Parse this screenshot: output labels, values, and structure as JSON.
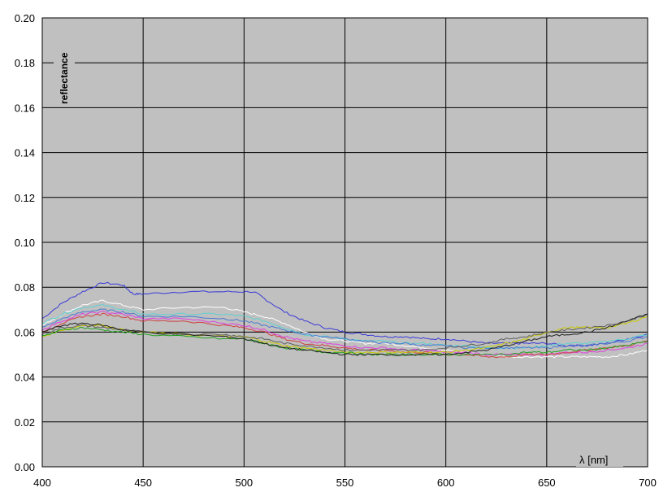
{
  "chart_data": {
    "type": "line",
    "title": "",
    "xlabel": "λ [nm]",
    "ylabel": "reflectance",
    "xlim": [
      400,
      700
    ],
    "ylim": [
      0,
      0.2
    ],
    "x_ticks": [
      "400",
      "450",
      "500",
      "550",
      "600",
      "650",
      "700"
    ],
    "y_ticks": [
      "0.00",
      "0.02",
      "0.04",
      "0.06",
      "0.08",
      "0.10",
      "0.12",
      "0.14",
      "0.16",
      "0.18",
      "0.20"
    ],
    "grid": true,
    "legend": "none",
    "plot_background": "#c0c0c0",
    "series": [
      {
        "color": "#3a3ad8",
        "points": [
          [
            400,
            0.066
          ],
          [
            410,
            0.073
          ],
          [
            420,
            0.078
          ],
          [
            430,
            0.082
          ],
          [
            440,
            0.081
          ],
          [
            445,
            0.077
          ],
          [
            450,
            0.077
          ],
          [
            470,
            0.078
          ],
          [
            490,
            0.078
          ],
          [
            505,
            0.078
          ],
          [
            510,
            0.075
          ],
          [
            520,
            0.069
          ],
          [
            530,
            0.065
          ],
          [
            540,
            0.062
          ],
          [
            550,
            0.06
          ],
          [
            560,
            0.059
          ],
          [
            570,
            0.058
          ],
          [
            580,
            0.058
          ],
          [
            590,
            0.057
          ],
          [
            600,
            0.057
          ],
          [
            610,
            0.056
          ],
          [
            620,
            0.055
          ],
          [
            630,
            0.055
          ],
          [
            640,
            0.055
          ],
          [
            650,
            0.055
          ],
          [
            660,
            0.054
          ],
          [
            670,
            0.054
          ],
          [
            680,
            0.055
          ],
          [
            690,
            0.057
          ],
          [
            700,
            0.059
          ]
        ]
      },
      {
        "color": "#ffffff",
        "points": [
          [
            400,
            0.063
          ],
          [
            410,
            0.068
          ],
          [
            420,
            0.072
          ],
          [
            430,
            0.074
          ],
          [
            440,
            0.072
          ],
          [
            450,
            0.07
          ],
          [
            470,
            0.071
          ],
          [
            490,
            0.071
          ],
          [
            500,
            0.069
          ],
          [
            510,
            0.067
          ],
          [
            520,
            0.064
          ],
          [
            530,
            0.06
          ],
          [
            540,
            0.057
          ],
          [
            550,
            0.056
          ],
          [
            560,
            0.055
          ],
          [
            570,
            0.055
          ],
          [
            580,
            0.054
          ],
          [
            590,
            0.053
          ],
          [
            600,
            0.052
          ],
          [
            610,
            0.051
          ],
          [
            620,
            0.05
          ],
          [
            630,
            0.049
          ],
          [
            640,
            0.049
          ],
          [
            650,
            0.049
          ],
          [
            660,
            0.049
          ],
          [
            670,
            0.049
          ],
          [
            680,
            0.049
          ],
          [
            690,
            0.05
          ],
          [
            700,
            0.052
          ]
        ]
      },
      {
        "color": "#5fd0d0",
        "points": [
          [
            400,
            0.064
          ],
          [
            410,
            0.068
          ],
          [
            420,
            0.071
          ],
          [
            430,
            0.072
          ],
          [
            440,
            0.07
          ],
          [
            450,
            0.068
          ],
          [
            470,
            0.068
          ],
          [
            490,
            0.068
          ],
          [
            500,
            0.067
          ],
          [
            510,
            0.065
          ],
          [
            520,
            0.062
          ],
          [
            530,
            0.059
          ],
          [
            540,
            0.058
          ],
          [
            550,
            0.057
          ],
          [
            560,
            0.056
          ],
          [
            570,
            0.056
          ],
          [
            580,
            0.055
          ],
          [
            590,
            0.055
          ],
          [
            600,
            0.054
          ],
          [
            610,
            0.054
          ],
          [
            620,
            0.053
          ],
          [
            630,
            0.053
          ],
          [
            640,
            0.053
          ],
          [
            650,
            0.054
          ],
          [
            660,
            0.055
          ],
          [
            670,
            0.055
          ],
          [
            680,
            0.056
          ],
          [
            690,
            0.057
          ],
          [
            700,
            0.059
          ]
        ]
      },
      {
        "color": "#4a7ad0",
        "points": [
          [
            400,
            0.062
          ],
          [
            410,
            0.066
          ],
          [
            420,
            0.069
          ],
          [
            430,
            0.07
          ],
          [
            440,
            0.069
          ],
          [
            450,
            0.067
          ],
          [
            470,
            0.067
          ],
          [
            490,
            0.066
          ],
          [
            500,
            0.065
          ],
          [
            510,
            0.063
          ],
          [
            520,
            0.061
          ],
          [
            530,
            0.059
          ],
          [
            540,
            0.058
          ],
          [
            550,
            0.057
          ],
          [
            560,
            0.056
          ],
          [
            570,
            0.055
          ],
          [
            580,
            0.055
          ],
          [
            590,
            0.054
          ],
          [
            600,
            0.054
          ],
          [
            610,
            0.053
          ],
          [
            620,
            0.053
          ],
          [
            630,
            0.053
          ],
          [
            640,
            0.053
          ],
          [
            650,
            0.053
          ],
          [
            660,
            0.054
          ],
          [
            670,
            0.054
          ],
          [
            680,
            0.055
          ],
          [
            690,
            0.056
          ],
          [
            700,
            0.058
          ]
        ]
      },
      {
        "color": "#e040e0",
        "points": [
          [
            400,
            0.061
          ],
          [
            410,
            0.065
          ],
          [
            420,
            0.068
          ],
          [
            430,
            0.069
          ],
          [
            440,
            0.068
          ],
          [
            450,
            0.066
          ],
          [
            470,
            0.066
          ],
          [
            490,
            0.064
          ],
          [
            500,
            0.063
          ],
          [
            510,
            0.061
          ],
          [
            520,
            0.058
          ],
          [
            530,
            0.056
          ],
          [
            540,
            0.055
          ],
          [
            550,
            0.054
          ],
          [
            560,
            0.053
          ],
          [
            570,
            0.053
          ],
          [
            580,
            0.052
          ],
          [
            590,
            0.052
          ],
          [
            600,
            0.051
          ],
          [
            610,
            0.051
          ],
          [
            620,
            0.05
          ],
          [
            630,
            0.05
          ],
          [
            640,
            0.05
          ],
          [
            650,
            0.05
          ],
          [
            660,
            0.051
          ],
          [
            670,
            0.051
          ],
          [
            680,
            0.052
          ],
          [
            690,
            0.053
          ],
          [
            700,
            0.055
          ]
        ]
      },
      {
        "color": "#d04040",
        "points": [
          [
            400,
            0.06
          ],
          [
            410,
            0.064
          ],
          [
            420,
            0.067
          ],
          [
            430,
            0.068
          ],
          [
            440,
            0.067
          ],
          [
            450,
            0.065
          ],
          [
            470,
            0.065
          ],
          [
            490,
            0.063
          ],
          [
            500,
            0.062
          ],
          [
            510,
            0.06
          ],
          [
            520,
            0.057
          ],
          [
            530,
            0.055
          ],
          [
            540,
            0.054
          ],
          [
            550,
            0.053
          ],
          [
            560,
            0.052
          ],
          [
            570,
            0.052
          ],
          [
            580,
            0.051
          ],
          [
            590,
            0.051
          ],
          [
            600,
            0.05
          ],
          [
            610,
            0.05
          ],
          [
            620,
            0.049
          ],
          [
            630,
            0.049
          ],
          [
            640,
            0.05
          ],
          [
            650,
            0.05
          ],
          [
            660,
            0.051
          ],
          [
            670,
            0.052
          ],
          [
            680,
            0.053
          ],
          [
            690,
            0.054
          ],
          [
            700,
            0.056
          ]
        ]
      },
      {
        "color": "#c8c800",
        "points": [
          [
            400,
            0.058
          ],
          [
            410,
            0.061
          ],
          [
            420,
            0.063
          ],
          [
            430,
            0.063
          ],
          [
            440,
            0.061
          ],
          [
            450,
            0.06
          ],
          [
            470,
            0.059
          ],
          [
            490,
            0.058
          ],
          [
            500,
            0.058
          ],
          [
            510,
            0.056
          ],
          [
            520,
            0.054
          ],
          [
            530,
            0.053
          ],
          [
            540,
            0.052
          ],
          [
            550,
            0.051
          ],
          [
            560,
            0.051
          ],
          [
            570,
            0.051
          ],
          [
            580,
            0.051
          ],
          [
            590,
            0.051
          ],
          [
            600,
            0.051
          ],
          [
            610,
            0.052
          ],
          [
            620,
            0.053
          ],
          [
            630,
            0.055
          ],
          [
            640,
            0.057
          ],
          [
            650,
            0.06
          ],
          [
            660,
            0.062
          ],
          [
            670,
            0.062
          ],
          [
            680,
            0.062
          ],
          [
            690,
            0.064
          ],
          [
            700,
            0.067
          ]
        ]
      },
      {
        "color": "#606060",
        "points": [
          [
            400,
            0.059
          ],
          [
            410,
            0.062
          ],
          [
            420,
            0.063
          ],
          [
            430,
            0.062
          ],
          [
            440,
            0.061
          ],
          [
            450,
            0.06
          ],
          [
            470,
            0.059
          ],
          [
            490,
            0.059
          ],
          [
            500,
            0.058
          ],
          [
            510,
            0.057
          ],
          [
            520,
            0.055
          ],
          [
            530,
            0.054
          ],
          [
            540,
            0.053
          ],
          [
            550,
            0.052
          ],
          [
            560,
            0.052
          ],
          [
            570,
            0.052
          ],
          [
            580,
            0.052
          ],
          [
            590,
            0.052
          ],
          [
            600,
            0.053
          ],
          [
            610,
            0.054
          ],
          [
            620,
            0.055
          ],
          [
            630,
            0.057
          ],
          [
            640,
            0.058
          ],
          [
            650,
            0.06
          ],
          [
            660,
            0.061
          ],
          [
            670,
            0.062
          ],
          [
            680,
            0.063
          ],
          [
            690,
            0.065
          ],
          [
            700,
            0.068
          ]
        ]
      },
      {
        "color": "#20a020",
        "points": [
          [
            400,
            0.058
          ],
          [
            410,
            0.061
          ],
          [
            420,
            0.062
          ],
          [
            430,
            0.061
          ],
          [
            440,
            0.06
          ],
          [
            450,
            0.059
          ],
          [
            470,
            0.058
          ],
          [
            490,
            0.057
          ],
          [
            500,
            0.057
          ],
          [
            510,
            0.055
          ],
          [
            520,
            0.053
          ],
          [
            530,
            0.052
          ],
          [
            540,
            0.051
          ],
          [
            550,
            0.051
          ],
          [
            560,
            0.05
          ],
          [
            570,
            0.05
          ],
          [
            580,
            0.05
          ],
          [
            590,
            0.05
          ],
          [
            600,
            0.05
          ],
          [
            610,
            0.05
          ],
          [
            620,
            0.05
          ],
          [
            630,
            0.05
          ],
          [
            640,
            0.051
          ],
          [
            650,
            0.051
          ],
          [
            660,
            0.052
          ],
          [
            670,
            0.052
          ],
          [
            680,
            0.053
          ],
          [
            690,
            0.054
          ],
          [
            700,
            0.056
          ]
        ]
      },
      {
        "color": "#202020",
        "points": [
          [
            400,
            0.06
          ],
          [
            410,
            0.063
          ],
          [
            420,
            0.064
          ],
          [
            430,
            0.063
          ],
          [
            440,
            0.061
          ],
          [
            450,
            0.06
          ],
          [
            470,
            0.059
          ],
          [
            490,
            0.058
          ],
          [
            500,
            0.057
          ],
          [
            510,
            0.055
          ],
          [
            520,
            0.053
          ],
          [
            530,
            0.052
          ],
          [
            540,
            0.051
          ],
          [
            550,
            0.05
          ],
          [
            560,
            0.05
          ],
          [
            570,
            0.05
          ],
          [
            580,
            0.05
          ],
          [
            590,
            0.05
          ],
          [
            600,
            0.05
          ],
          [
            610,
            0.051
          ],
          [
            620,
            0.052
          ],
          [
            630,
            0.054
          ],
          [
            640,
            0.056
          ],
          [
            650,
            0.058
          ],
          [
            660,
            0.059
          ],
          [
            670,
            0.06
          ],
          [
            680,
            0.062
          ],
          [
            690,
            0.065
          ],
          [
            700,
            0.068
          ]
        ]
      }
    ]
  }
}
